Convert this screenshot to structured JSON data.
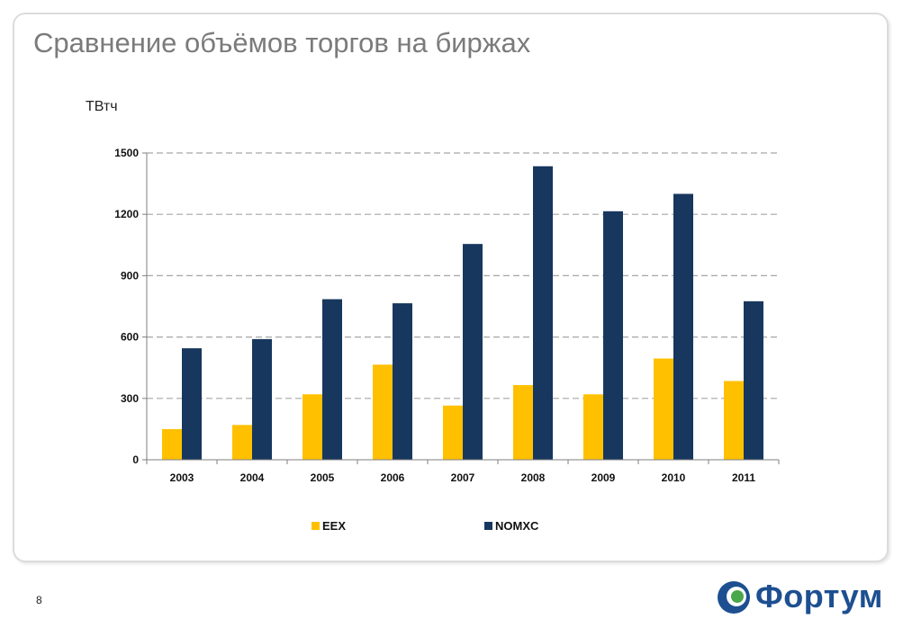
{
  "slide": {
    "title": "Сравнение объёмов торгов на биржах",
    "unit": "ТВтч",
    "page_number": "8",
    "logo_text": "Фортум"
  },
  "colors": {
    "EEX": "#ffc000",
    "NOMXC": "#17375e",
    "grid": "#a6a6a6",
    "axis": "#7f7f7f"
  },
  "chart_data": {
    "type": "bar",
    "title": "",
    "xlabel": "",
    "ylabel": "ТВтч",
    "ylim": [
      0,
      1500
    ],
    "yticks": [
      0,
      300,
      600,
      900,
      1200,
      1500
    ],
    "grid": true,
    "legend_position": "bottom",
    "categories": [
      "2003",
      "2004",
      "2005",
      "2006",
      "2007",
      "2008",
      "2009",
      "2010",
      "2011"
    ],
    "series": [
      {
        "name": "EEX",
        "values": [
          150,
          170,
          320,
          465,
          265,
          365,
          320,
          495,
          385
        ]
      },
      {
        "name": "NOMXC",
        "values": [
          545,
          590,
          785,
          765,
          1055,
          1435,
          1215,
          1300,
          775
        ]
      }
    ]
  }
}
